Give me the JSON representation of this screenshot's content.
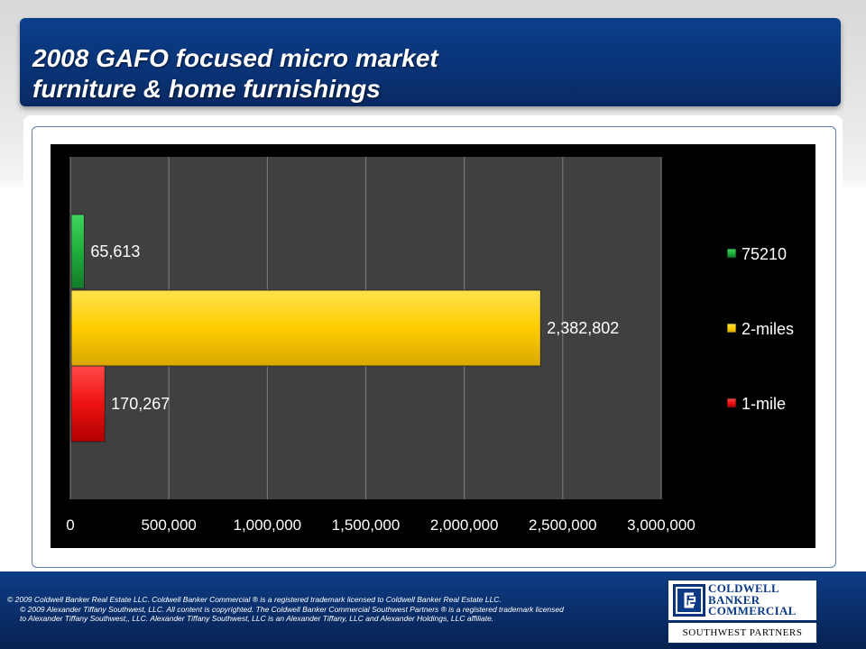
{
  "header": {
    "title_line1": "2008 GAFO focused micro market",
    "title_line2": "furniture & home furnishings"
  },
  "chart_data": {
    "type": "bar",
    "orientation": "horizontal",
    "title": "",
    "xlabel": "",
    "ylabel": "",
    "xlim": [
      0,
      3000000
    ],
    "x_ticks": [
      "0",
      "500,000",
      "1,000,000",
      "1,500,000",
      "2,000,000",
      "2,500,000",
      "3,000,000"
    ],
    "x_tick_values": [
      0,
      500000,
      1000000,
      1500000,
      2000000,
      2500000,
      3000000
    ],
    "grid": true,
    "legend_position": "right",
    "series": [
      {
        "name": "75210",
        "value": 65613,
        "label": "65,613",
        "color": "#1fae3c"
      },
      {
        "name": "2-miles",
        "value": 2382802,
        "label": "2,382,802",
        "color": "#ffcc00"
      },
      {
        "name": "1-mile",
        "value": 170267,
        "label": "170,267",
        "color": "#ee1111"
      }
    ],
    "colors": {
      "plot_background": "#404040",
      "outer_background": "#000000",
      "gridline": "#7f7f7f",
      "text": "#ffffff"
    }
  },
  "footer": {
    "line1": "© 2009 Coldwell Banker Real Estate LLC. Coldwell Banker Commercial ® is a registered trademark licensed to Coldwell Banker Real Estate LLC.",
    "line2": "© 2009 Alexander Tiffany Southwest, LLC. All content is copyrighted. The Coldwell Banker Commercial Southwest Partners ® is a registered trademark licensed",
    "line3": "to Alexander Tiffany Southwest,, LLC.  Alexander Tiffany Southwest, LLC is an Alexander Tiffany, LLC and Alexander Holdings, LLC affiliate."
  },
  "logo": {
    "line1": "COLDWELL",
    "line2": "BANKER",
    "line3": "COMMERCIAL",
    "subtitle": "SOUTHWEST PARTNERS",
    "brand_color": "#0a3a86"
  }
}
